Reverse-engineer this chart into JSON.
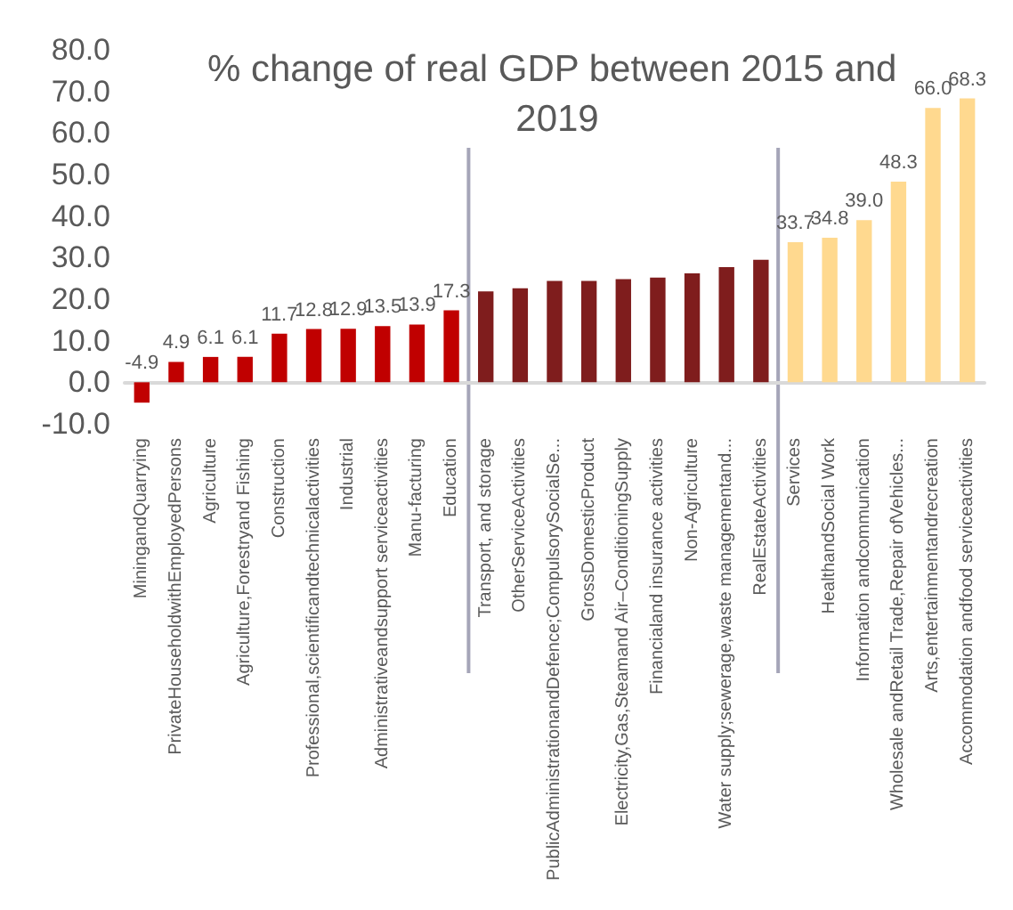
{
  "chart_data": {
    "type": "bar",
    "title": "% change of real GDP between 2015 and 2019",
    "categories": [
      "MiningandQuarrying",
      "PrivateHouseholdwithEmployedPersons",
      "Agriculture",
      "Agriculture,Forestryand Fishing",
      "Construction",
      "Professional,scientificandtechnicalactivities",
      "Industrial",
      "Administrativeandsupport serviceactivities",
      "Manu-facturing",
      "Education",
      "Transport, and storage",
      "OtherServiceActivities",
      "PublicAdministrationandDefence;CompulsorySocialSe...",
      "GrossDomesticProduct",
      "Electricity,Gas,Steamand Air–ConditioningSupply",
      "Financialand insurance activities",
      "Non-Agriculture",
      "Water supply;sewerage,waste managementand...",
      "RealEstateActivities",
      "Services",
      "HealthandSocial Work",
      "Information andcommunication",
      "Wholesale andRetail Trade,Repair ofVehicles...",
      "Arts,entertainmentandrecreation",
      "Accommodation andfood serviceactivities"
    ],
    "series": [
      {
        "color": "#c00000",
        "values": [
          -4.9,
          4.9,
          6.1,
          6.1,
          11.7,
          12.8,
          12.9,
          13.5,
          13.9,
          17.3,
          null,
          null,
          null,
          null,
          null,
          null,
          null,
          null,
          null,
          null,
          null,
          null,
          null,
          null,
          null
        ],
        "value_labels": [
          "-4.9",
          "4.9",
          "6.1",
          "6.1",
          "11.7",
          "12.8",
          "12.9",
          "13.5",
          "13.9",
          "17.3",
          null,
          null,
          null,
          null,
          null,
          null,
          null,
          null,
          null,
          null,
          null,
          null,
          null,
          null,
          null
        ]
      },
      {
        "color": "#7f1d1d",
        "values": [
          null,
          null,
          null,
          null,
          null,
          null,
          null,
          null,
          null,
          null,
          21.9,
          22.6,
          24.4,
          24.4,
          24.8,
          25.2,
          26.2,
          27.7,
          29.5,
          null,
          null,
          null,
          null,
          null,
          null
        ]
      },
      {
        "color": "#ffd98f",
        "values": [
          null,
          null,
          null,
          null,
          null,
          null,
          null,
          null,
          null,
          null,
          null,
          null,
          null,
          null,
          null,
          null,
          null,
          null,
          null,
          33.7,
          34.8,
          39.0,
          48.3,
          66.0,
          68.3
        ],
        "value_labels": [
          null,
          null,
          null,
          null,
          null,
          null,
          null,
          null,
          null,
          null,
          null,
          null,
          null,
          null,
          null,
          null,
          null,
          null,
          null,
          "33.7",
          "34.8",
          "39.0",
          "48.3",
          "66.0",
          "68.3"
        ]
      }
    ],
    "ylim": [
      -10,
      80
    ],
    "yticks": [
      {
        "value": -10,
        "label": "-10.0"
      },
      {
        "value": 0,
        "label": "0.0"
      },
      {
        "value": 10,
        "label": "10.0"
      },
      {
        "value": 20,
        "label": "20.0"
      },
      {
        "value": 30,
        "label": "30.0"
      },
      {
        "value": 40,
        "label": "40.0"
      },
      {
        "value": 50,
        "label": "50.0"
      },
      {
        "value": 60,
        "label": "60.0"
      },
      {
        "value": 70,
        "label": "70.0"
      },
      {
        "value": 80,
        "label": "80.0"
      }
    ],
    "grid": false
  }
}
